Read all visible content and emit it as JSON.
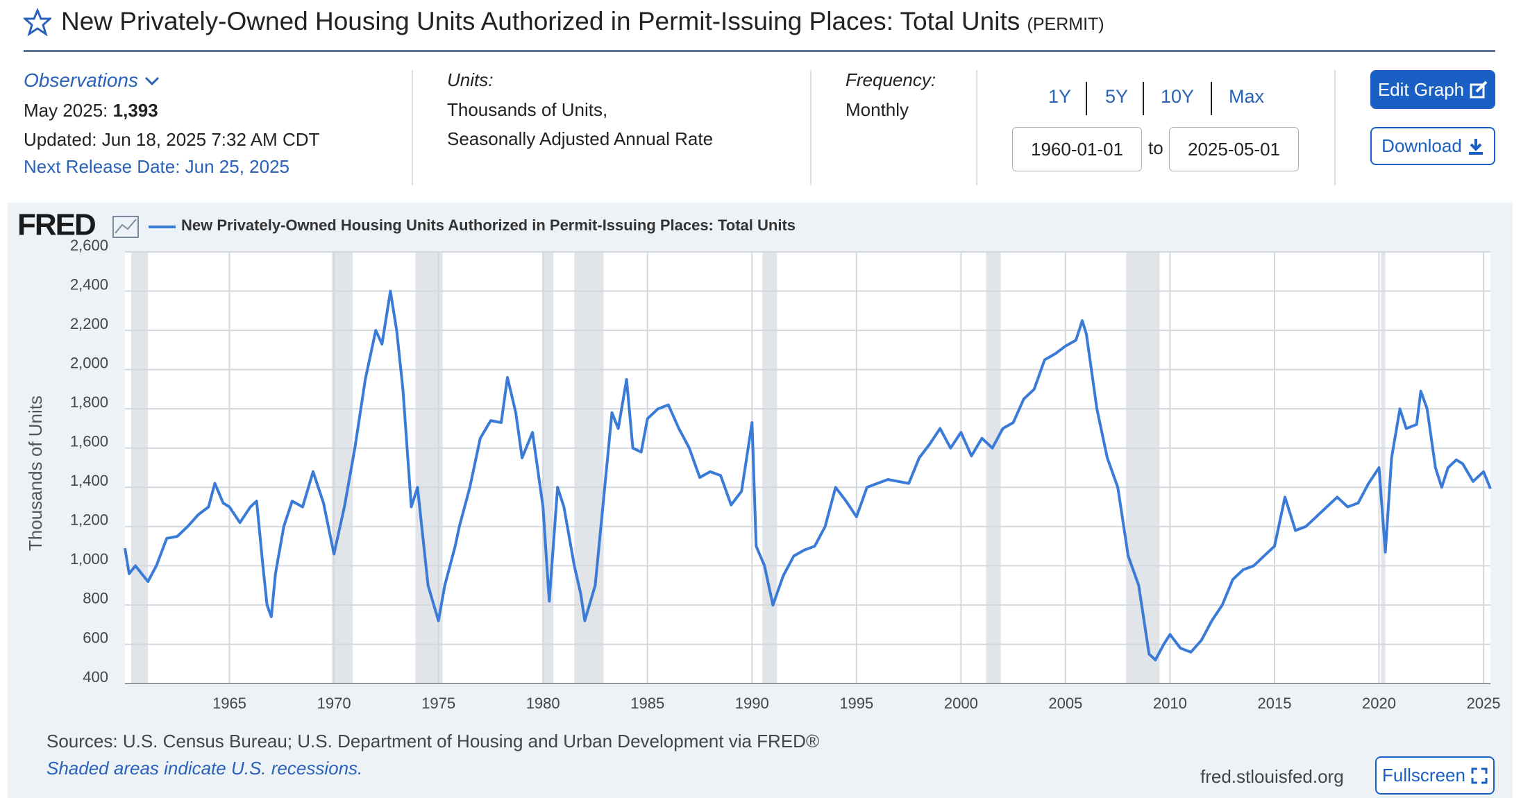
{
  "header": {
    "title": "New Privately-Owned Housing Units Authorized in Permit-Issuing Places: Total Units",
    "series_id": "(PERMIT)"
  },
  "observations": {
    "label": "Observations",
    "latest_label": "May 2025:",
    "latest_value": "1,393",
    "updated": "Updated: Jun 18, 2025 7:32 AM CDT",
    "next_release": "Next Release Date: Jun 25, 2025"
  },
  "units": {
    "label": "Units:",
    "lines": [
      "Thousands of Units,",
      "Seasonally Adjusted Annual Rate"
    ]
  },
  "frequency": {
    "label": "Frequency:",
    "value": "Monthly"
  },
  "range": {
    "buttons": [
      "1Y",
      "5Y",
      "10Y",
      "Max"
    ],
    "start": "1960-01-01",
    "to": "to",
    "end": "2025-05-01"
  },
  "actions": {
    "edit": "Edit Graph",
    "download": "Download",
    "fullscreen": "Fullscreen"
  },
  "chart_data": {
    "type": "line",
    "logo": "FRED",
    "ylabel": "Thousands of Units",
    "x": [
      1960.0,
      1960.2,
      1960.5,
      1960.8,
      1961.1,
      1961.5,
      1962,
      1962.5,
      1963,
      1963.5,
      1964,
      1964.3,
      1964.7,
      1965,
      1965.5,
      1966,
      1966.3,
      1966.6,
      1966.8,
      1967,
      1967.2,
      1967.6,
      1968,
      1968.5,
      1969,
      1969.5,
      1970,
      1970.5,
      1971,
      1971.5,
      1972,
      1972.3,
      1972.7,
      1973,
      1973.3,
      1973.7,
      1974,
      1974.5,
      1975,
      1975.3,
      1975.8,
      1976,
      1976.5,
      1977,
      1977.5,
      1978,
      1978.3,
      1978.7,
      1979,
      1979.5,
      1980,
      1980.3,
      1980.7,
      1981,
      1981.5,
      1981.8,
      1982,
      1982.5,
      1983,
      1983.3,
      1983.6,
      1984,
      1984.3,
      1984.7,
      1985,
      1985.5,
      1986,
      1986.5,
      1987,
      1987.5,
      1988,
      1988.5,
      1989,
      1989.5,
      1990,
      1990.2,
      1990.6,
      1991,
      1991.5,
      1992,
      1992.5,
      1993,
      1993.5,
      1994,
      1994.5,
      1995,
      1995.5,
      1996,
      1996.5,
      1997,
      1997.5,
      1998,
      1998.5,
      1999,
      1999.5,
      2000,
      2000.5,
      2001,
      2001.5,
      2002,
      2002.5,
      2003,
      2003.5,
      2004,
      2004.5,
      2005,
      2005.5,
      2005.8,
      2006,
      2006.5,
      2007,
      2007.5,
      2008,
      2008.5,
      2009,
      2009.3,
      2009.7,
      2010,
      2010.5,
      2011,
      2011.5,
      2012,
      2012.5,
      2013,
      2013.5,
      2014,
      2014.5,
      2015,
      2015.5,
      2016,
      2016.5,
      2017,
      2017.5,
      2018,
      2018.5,
      2019,
      2019.5,
      2020,
      2020.3,
      2020.6,
      2021,
      2021.3,
      2021.8,
      2022,
      2022.3,
      2022.7,
      2023,
      2023.3,
      2023.7,
      2024,
      2024.5,
      2025,
      2025.33
    ],
    "series": [
      {
        "name": "New Privately-Owned Housing Units Authorized in Permit-Issuing Places: Total Units",
        "color": "#3b7bd8",
        "values": [
          1090,
          960,
          1000,
          960,
          920,
          1000,
          1140,
          1150,
          1200,
          1260,
          1300,
          1420,
          1320,
          1300,
          1220,
          1300,
          1330,
          1000,
          800,
          740,
          960,
          1200,
          1330,
          1300,
          1480,
          1320,
          1060,
          1300,
          1600,
          1950,
          2200,
          2130,
          2400,
          2200,
          1900,
          1300,
          1400,
          900,
          720,
          900,
          1100,
          1200,
          1400,
          1650,
          1740,
          1730,
          1960,
          1780,
          1550,
          1680,
          1300,
          820,
          1400,
          1300,
          1000,
          860,
          720,
          900,
          1450,
          1780,
          1700,
          1950,
          1600,
          1580,
          1750,
          1800,
          1820,
          1700,
          1600,
          1450,
          1480,
          1460,
          1310,
          1380,
          1730,
          1100,
          1000,
          800,
          950,
          1050,
          1080,
          1100,
          1200,
          1400,
          1330,
          1250,
          1400,
          1420,
          1440,
          1430,
          1420,
          1550,
          1620,
          1700,
          1600,
          1680,
          1560,
          1650,
          1600,
          1700,
          1730,
          1850,
          1900,
          2050,
          2080,
          2120,
          2150,
          2250,
          2180,
          1800,
          1550,
          1400,
          1050,
          900,
          550,
          520,
          600,
          650,
          580,
          560,
          620,
          720,
          800,
          930,
          980,
          1000,
          1050,
          1100,
          1350,
          1180,
          1200,
          1250,
          1300,
          1350,
          1300,
          1320,
          1420,
          1500,
          1070,
          1550,
          1800,
          1700,
          1720,
          1890,
          1800,
          1500,
          1400,
          1500,
          1540,
          1520,
          1430,
          1480,
          1393
        ]
      }
    ],
    "xlim": [
      1960,
      2025.33
    ],
    "xticks": [
      1965,
      1970,
      1975,
      1980,
      1985,
      1990,
      1995,
      2000,
      2005,
      2010,
      2015,
      2020,
      2025
    ],
    "ylim": [
      400,
      2600
    ],
    "yticks": [
      400,
      600,
      800,
      {
        "value": 1000,
        "label": "1,000"
      },
      {
        "value": 1200,
        "label": "1,200"
      },
      {
        "value": 1400,
        "label": "1,400"
      },
      {
        "value": 1600,
        "label": "1,600"
      },
      {
        "value": 1800,
        "label": "1,800"
      },
      {
        "value": 2000,
        "label": "2,000"
      },
      {
        "value": 2200,
        "label": "2,200"
      },
      {
        "value": 2400,
        "label": "2,400"
      },
      {
        "value": 2600,
        "label": "2,600"
      }
    ],
    "recessions": [
      [
        1960.3,
        1961.1
      ],
      [
        1969.9,
        1970.9
      ],
      [
        1973.9,
        1975.2
      ],
      [
        1980.0,
        1980.5
      ],
      [
        1981.5,
        1982.9
      ],
      [
        1990.5,
        1991.2
      ],
      [
        2001.2,
        2001.9
      ],
      [
        2007.9,
        2009.5
      ],
      [
        2020.1,
        2020.3
      ]
    ],
    "recession_color": "#e1e4e8",
    "grid": true
  },
  "footer": {
    "sources": "Sources: U.S. Census Bureau; U.S. Department of Housing and Urban Development via FRED®",
    "note": "Shaded areas indicate U.S. recessions.",
    "site": "fred.stlouisfed.org"
  }
}
